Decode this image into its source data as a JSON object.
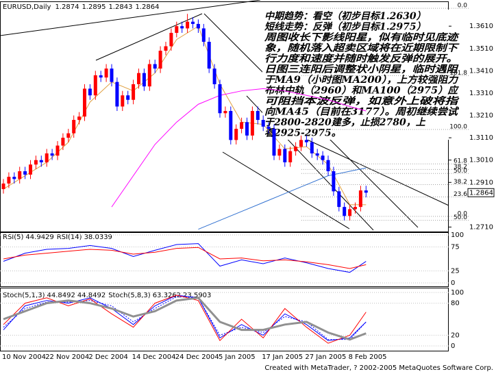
{
  "header": {
    "symbol": "EURUSD,Daily"
  },
  "chart_data": [
    {
      "type": "candlestick",
      "categories": [
        "10 Nov 2004",
        null,
        null,
        null,
        null,
        null,
        null,
        null,
        "22 Nov 2004",
        null,
        null,
        null,
        null,
        null,
        null,
        null,
        "2 Dec 2004",
        null,
        null,
        null,
        null,
        null,
        null,
        null,
        "14 Dec 2004",
        null,
        null,
        null,
        null,
        null,
        null,
        null,
        "24 Dec 2004",
        null,
        null,
        null,
        null,
        null,
        null,
        null,
        "5 Jan 2005",
        null,
        null,
        null,
        null,
        null,
        null,
        null,
        "17 Jan 2005",
        null,
        null,
        null,
        null,
        null,
        null,
        null,
        "27 Jan 2005",
        null,
        null,
        null,
        null,
        null,
        null,
        null,
        "8 Feb 2005",
        null,
        null,
        null
      ],
      "open": [
        1.288,
        1.2905,
        1.2935,
        1.2925,
        1.296,
        1.2945,
        1.299,
        1.301,
        1.3,
        1.304,
        1.303,
        1.3075,
        1.311,
        1.313,
        1.319,
        1.3205,
        1.333,
        1.33,
        1.339,
        1.338,
        1.342,
        1.336,
        1.325,
        1.33,
        1.328,
        1.335,
        1.34,
        1.334,
        1.344,
        1.342,
        1.35,
        1.352,
        1.358,
        1.361,
        1.36,
        1.363,
        1.362,
        1.36,
        1.354,
        1.342,
        1.335,
        1.322,
        1.323,
        1.31,
        1.315,
        1.318,
        1.312,
        1.323,
        1.319,
        1.316,
        1.315,
        1.303,
        1.306,
        1.3,
        1.305,
        1.307,
        1.31,
        1.309,
        1.304,
        1.303,
        1.301,
        1.296,
        1.287,
        1.28,
        1.276,
        1.279,
        1.28,
        1.2874
      ],
      "high": [
        1.2925,
        1.2955,
        1.2955,
        1.298,
        1.298,
        1.301,
        1.303,
        1.303,
        1.306,
        1.306,
        1.3095,
        1.313,
        1.315,
        1.321,
        1.3225,
        1.335,
        1.335,
        1.341,
        1.341,
        1.344,
        1.344,
        1.338,
        1.332,
        1.332,
        1.337,
        1.342,
        1.342,
        1.346,
        1.346,
        1.352,
        1.354,
        1.36,
        1.363,
        1.363,
        1.3665,
        1.365,
        1.364,
        1.362,
        1.356,
        1.344,
        1.337,
        1.325,
        1.325,
        1.317,
        1.32,
        1.32,
        1.325,
        1.325,
        1.321,
        1.318,
        1.317,
        1.308,
        1.308,
        1.307,
        1.309,
        1.312,
        1.312,
        1.311,
        1.306,
        1.305,
        1.303,
        1.298,
        1.289,
        1.282,
        1.281,
        1.282,
        1.2895,
        1.2895
      ],
      "low": [
        1.286,
        1.2885,
        1.2905,
        1.2905,
        1.2925,
        1.2925,
        1.297,
        1.298,
        1.298,
        1.301,
        1.301,
        1.3055,
        1.309,
        1.311,
        1.317,
        1.3185,
        1.328,
        1.328,
        1.336,
        1.336,
        1.334,
        1.323,
        1.323,
        1.326,
        1.326,
        1.333,
        1.332,
        1.332,
        1.34,
        1.34,
        1.348,
        1.35,
        1.356,
        1.358,
        1.358,
        1.36,
        1.358,
        1.352,
        1.34,
        1.333,
        1.32,
        1.32,
        1.308,
        1.308,
        1.313,
        1.31,
        1.31,
        1.317,
        1.314,
        1.313,
        1.301,
        1.301,
        1.298,
        1.298,
        1.303,
        1.305,
        1.307,
        1.302,
        1.301,
        1.299,
        1.294,
        1.285,
        1.278,
        1.274,
        1.274,
        1.277,
        1.278,
        1.2843
      ],
      "close": [
        1.2905,
        1.2935,
        1.2925,
        1.296,
        1.2945,
        1.299,
        1.301,
        1.3,
        1.304,
        1.303,
        1.3075,
        1.311,
        1.313,
        1.319,
        1.3205,
        1.333,
        1.33,
        1.339,
        1.338,
        1.342,
        1.336,
        1.325,
        1.33,
        1.328,
        1.335,
        1.34,
        1.334,
        1.344,
        1.342,
        1.35,
        1.352,
        1.358,
        1.361,
        1.36,
        1.363,
        1.362,
        1.36,
        1.354,
        1.342,
        1.335,
        1.322,
        1.323,
        1.31,
        1.315,
        1.318,
        1.312,
        1.323,
        1.319,
        1.316,
        1.315,
        1.303,
        1.306,
        1.3,
        1.305,
        1.307,
        1.31,
        1.309,
        1.304,
        1.303,
        1.301,
        1.296,
        1.287,
        1.28,
        1.276,
        1.279,
        1.28,
        1.2874,
        1.2864
      ],
      "up_color": "#ff0000",
      "down_color": "#0000ff",
      "ylim": [
        1.2693,
        1.3718
      ],
      "yticks": [
        {
          "value": 1.361,
          "label": "1.3610"
        },
        {
          "value": 1.351,
          "label": "1.3510"
        },
        {
          "value": 1.341,
          "label": "1.3410"
        },
        {
          "value": 1.331,
          "label": "1.3310"
        },
        {
          "value": 1.321,
          "label": "1.3210"
        },
        {
          "value": 1.311,
          "label": "1.3110"
        },
        {
          "value": 1.301,
          "label": "1.3010"
        },
        {
          "value": 1.291,
          "label": "1.2910"
        },
        {
          "value": 1.271,
          "label": "1.2710"
        }
      ],
      "overlays": [
        {
          "color": "#e0a040",
          "x": [
            0,
            4,
            8,
            12,
            16,
            20,
            24,
            28,
            32,
            36,
            40,
            44,
            48,
            52,
            56,
            60,
            64,
            67
          ],
          "values": [
            1.288,
            1.294,
            1.3,
            1.309,
            1.327,
            1.336,
            1.332,
            1.34,
            1.355,
            1.361,
            1.335,
            1.318,
            1.317,
            1.306,
            1.307,
            1.299,
            1.281,
            1.281
          ]
        },
        {
          "color": "#ff00ff",
          "x": [
            0,
            4,
            8,
            12,
            16,
            20,
            24,
            28,
            32,
            36,
            40,
            44,
            48,
            52,
            56,
            60,
            64,
            67
          ],
          "values": [
            null,
            null,
            null,
            null,
            null,
            1.28,
            1.294,
            1.308,
            1.318,
            1.326,
            1.33,
            1.332,
            1.333,
            1.332,
            1.33,
            1.328,
            1.325,
            1.323
          ]
        },
        {
          "color": "#3070d0",
          "x": [
            0,
            4,
            8,
            12,
            16,
            20,
            24,
            28,
            32,
            36,
            40,
            44,
            48,
            52,
            56,
            60,
            64,
            67
          ],
          "values": [
            null,
            null,
            null,
            null,
            null,
            null,
            null,
            null,
            null,
            1.27,
            1.274,
            1.278,
            1.282,
            1.286,
            1.29,
            1.294,
            1.296,
            1.2975
          ]
        }
      ],
      "fibo": [
        {
          "label": "0.0",
          "price": 1.369
        },
        {
          "label": "161.8",
          "price": 1.3388
        },
        {
          "label": "100.0",
          "price": 1.3147
        },
        {
          "label": "61.8",
          "price": 1.2993
        },
        {
          "label": "38.2",
          "price": 1.2968
        },
        {
          "label": "50.0",
          "price": 1.295
        },
        {
          "label": "38.2",
          "price": 1.29
        },
        {
          "label": "23.6",
          "price": 1.2845
        },
        {
          "label": "0.0",
          "price": 1.2758
        },
        {
          "label": "50.0",
          "price": 1.274
        }
      ],
      "annotation": {
        "lines": [
          "中期趋势：看空（初步目标1.2630）",
          "短线走势：反弹（初步目标1.2975）",
          "周图收长下影线阳星，似有临时见底迹",
          "象，随机落入超卖区域将在近期限制下",
          "行力度和速度并随时触发反弹的展开。",
          "日图三连阳后调整状小阴星，临时遇阻",
          "于MA9（小时图MA200），上方较强阻力",
          "布林中轨（2960）和MA100（2975）应",
          "可阻挡本波反弹，如意外上破将指",
          "向MA45（目前在3177）。周初继续尝试",
          "于2800-2820建多，止损2780，上",
          "看2925-2975。"
        ]
      }
    },
    {
      "type": "line",
      "ylim": [
        0,
        100
      ],
      "yticks": [
        100,
        75,
        25,
        0
      ],
      "series": [
        {
          "name": "RSI(5)",
          "color": "#0000ff",
          "x": [
            0,
            4,
            8,
            12,
            16,
            20,
            24,
            28,
            32,
            36,
            40,
            44,
            48,
            52,
            56,
            60,
            64,
            67
          ],
          "values": [
            45,
            62,
            70,
            72,
            78,
            72,
            55,
            68,
            80,
            82,
            35,
            48,
            40,
            52,
            42,
            30,
            22,
            44.9429
          ]
        },
        {
          "name": "RSI(14)",
          "color": "#ff0000",
          "x": [
            0,
            4,
            8,
            12,
            16,
            20,
            24,
            28,
            32,
            36,
            40,
            44,
            48,
            52,
            56,
            60,
            64,
            67
          ],
          "values": [
            50,
            58,
            62,
            66,
            70,
            68,
            60,
            64,
            72,
            74,
            50,
            52,
            46,
            48,
            44,
            38,
            30,
            38.0339
          ]
        }
      ]
    },
    {
      "type": "line",
      "ylim": [
        0,
        100
      ],
      "yticks": [
        100,
        80,
        20,
        0
      ],
      "series": [
        {
          "name": "Stoch(5,1,3)",
          "color": "#0000ff",
          "width": 1,
          "x": [
            0,
            4,
            8,
            12,
            16,
            20,
            24,
            28,
            32,
            36,
            40,
            44,
            48,
            52,
            56,
            60,
            64,
            67
          ],
          "values": [
            30,
            75,
            85,
            80,
            90,
            70,
            40,
            75,
            95,
            90,
            15,
            40,
            20,
            60,
            40,
            10,
            15,
            44.8492
          ]
        },
        {
          "color": "#0000ff",
          "width": 1,
          "dash": "2,2",
          "x": [
            0,
            4,
            8,
            12,
            16,
            20,
            24,
            28,
            32,
            36,
            40,
            44,
            48,
            52,
            56,
            60,
            64,
            67
          ],
          "values": [
            35,
            70,
            82,
            82,
            85,
            75,
            45,
            70,
            92,
            90,
            20,
            35,
            25,
            55,
            45,
            12,
            12,
            44.8492
          ]
        },
        {
          "name": "Stoch(5,8,3)",
          "color": "#ff0000",
          "width": 1,
          "x": [
            0,
            4,
            8,
            12,
            16,
            20,
            24,
            28,
            32,
            36,
            40,
            44,
            48,
            52,
            56,
            60,
            64,
            67
          ],
          "values": [
            40,
            80,
            90,
            75,
            88,
            60,
            35,
            80,
            95,
            85,
            10,
            50,
            15,
            70,
            35,
            5,
            20,
            63.3262
          ]
        },
        {
          "color": "#909090",
          "width": 3,
          "x": [
            0,
            4,
            8,
            12,
            16,
            20,
            24,
            28,
            32,
            36,
            40,
            44,
            48,
            52,
            56,
            60,
            64,
            67
          ],
          "values": [
            50,
            65,
            80,
            85,
            80,
            70,
            55,
            65,
            85,
            90,
            45,
            30,
            30,
            40,
            45,
            25,
            12,
            23.5903
          ]
        }
      ]
    }
  ],
  "footer": "Created with MetaTrader, ? 2002-2005 MetaQuotes Software Corp."
}
